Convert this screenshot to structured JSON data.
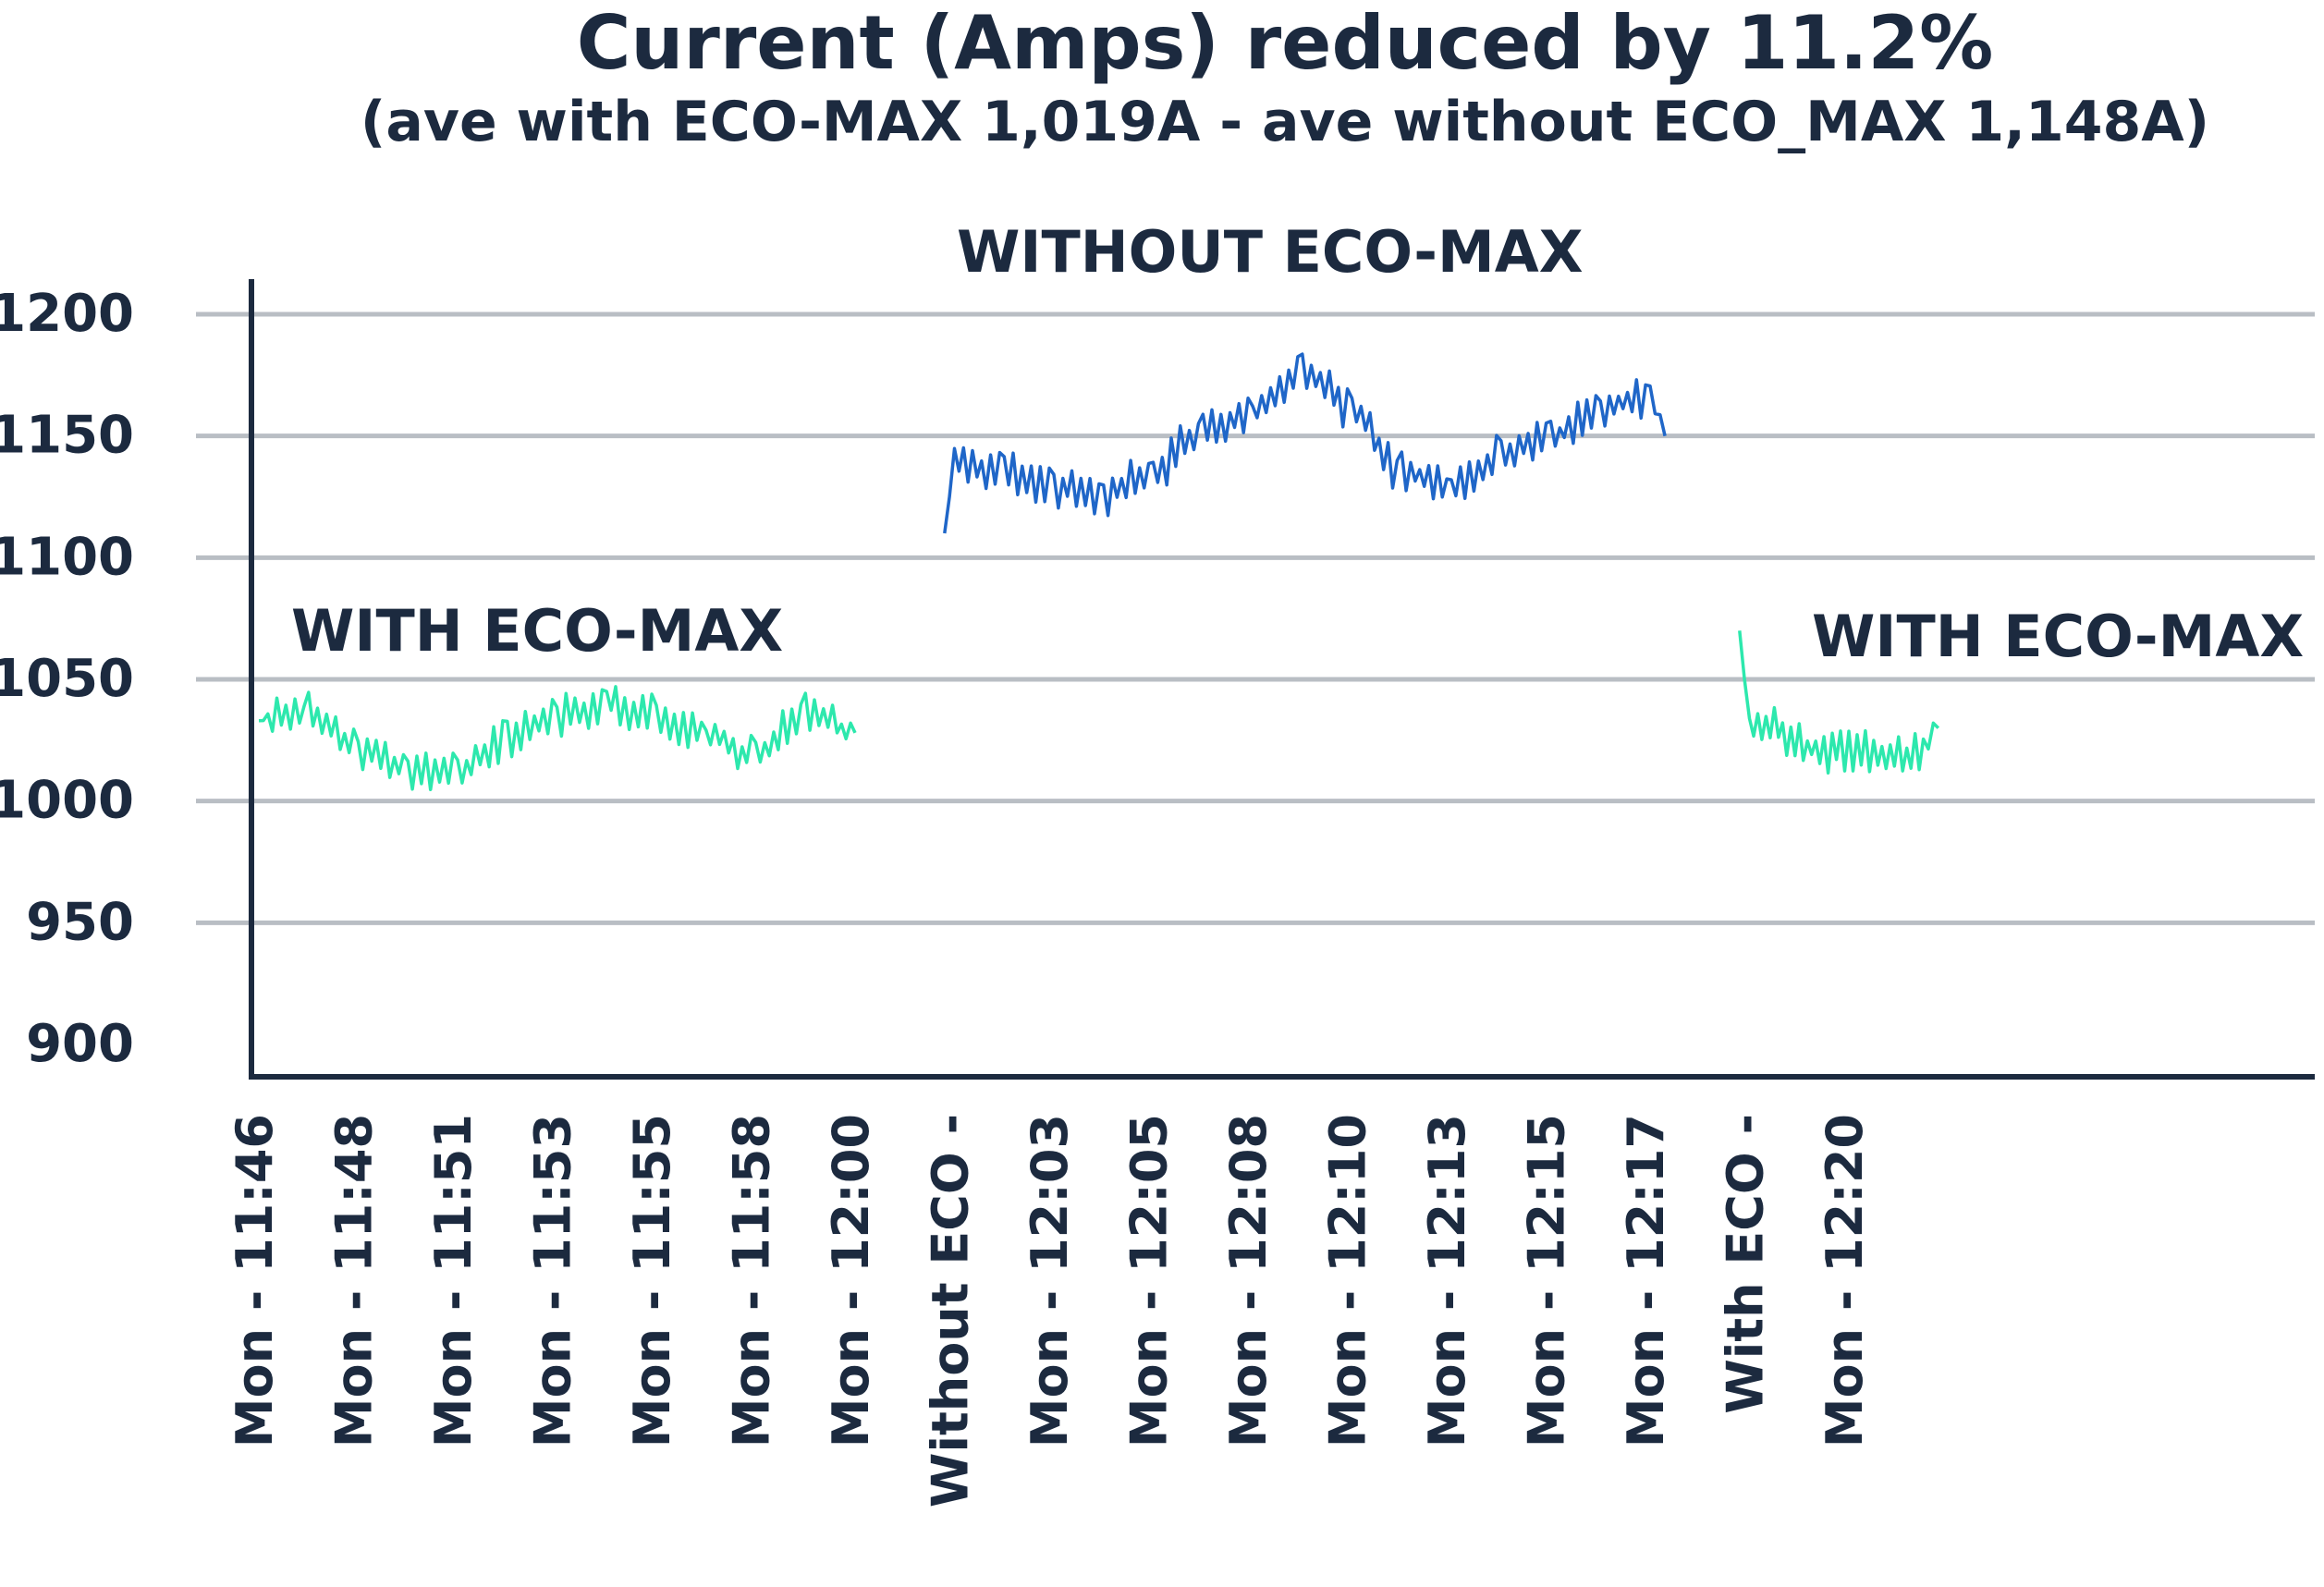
{
  "chart_data": {
    "type": "line",
    "title": "Current (Amps) reduced by 11.2%",
    "subtitle": "(ave with ECO-MAX 1,019A - ave without ECO_MAX 1,148A)",
    "ylim": [
      900,
      1200
    ],
    "yticks": [
      900,
      950,
      1000,
      1050,
      1100,
      1150,
      1200
    ],
    "grid": true,
    "colors": {
      "with": "#2de8ad",
      "without": "#1f66c8",
      "text": "#1c2a3f",
      "grid": "#b9bec4",
      "axis": "#1c2a3f"
    },
    "x_tick_labels": [
      "Mon - 11:46",
      "Mon - 11:48",
      "Mon - 11:51",
      "Mon - 11:53",
      "Mon - 11:55",
      "Mon - 11:58",
      "Mon - 12:00",
      "Without ECO -",
      "Mon - 12:03",
      "Mon - 12:05",
      "Mon - 12:08",
      "Mon - 12:10",
      "Mon - 12:13",
      "Mon - 12:15",
      "Mon - 12:17",
      "With ECO -",
      "Mon - 12:20"
    ],
    "annotations": [
      {
        "text": "WITH ECO-MAX",
        "near": "left segment"
      },
      {
        "text": "WITHOUT ECO-MAX",
        "near": "middle segment"
      },
      {
        "text": "WITH ECO-MAX",
        "near": "right segment"
      }
    ],
    "series": [
      {
        "color": "#2de8ad",
        "x": [
          0.0,
          0.5,
          1.0,
          1.5,
          2.0,
          2.5,
          3.0,
          3.5,
          4.0,
          4.5,
          5.0,
          5.5,
          6.0
        ],
        "values": [
          1033,
          1036,
          1021,
          1014,
          1012,
          1025,
          1035,
          1040,
          1036,
          1027,
          1018,
          1036,
          1028
        ]
      },
      {
        "color": "#1f66c8",
        "x": [
          6.9,
          7.0,
          7.5,
          8.0,
          8.5,
          9.0,
          9.5,
          10.0,
          10.5,
          11.0,
          11.5,
          12.0,
          12.5,
          13.0,
          13.5,
          14.0,
          14.15
        ],
        "values": [
          1110,
          1140,
          1135,
          1128,
          1125,
          1136,
          1152,
          1160,
          1178,
          1160,
          1135,
          1128,
          1142,
          1150,
          1162,
          1165,
          1150
        ]
      },
      {
        "color": "#2de8ad",
        "x": [
          14.9,
          15.0,
          15.25,
          15.5,
          15.75,
          16.0,
          16.25,
          16.5,
          16.75,
          16.9
        ],
        "values": [
          1070,
          1030,
          1032,
          1023,
          1020,
          1020,
          1021,
          1018,
          1022,
          1030
        ]
      }
    ]
  }
}
